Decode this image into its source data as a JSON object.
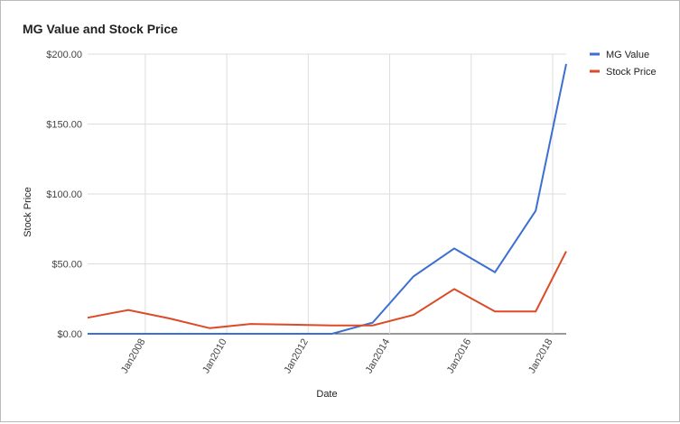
{
  "chart_data": {
    "type": "line",
    "title": "MG Value and Stock Price",
    "x_label": "Date",
    "y_label": "Stock Price",
    "x": [
      "2006-08",
      "2007-08",
      "2008-08",
      "2009-08",
      "2010-08",
      "2011-08",
      "2012-08",
      "2013-08",
      "2014-08",
      "2015-08",
      "2016-08",
      "2017-08",
      "2018-05"
    ],
    "series": [
      {
        "name": "MG Value",
        "color": "#3c6fd1",
        "values": [
          0,
          0,
          0,
          0,
          0,
          0,
          0,
          8,
          41,
          61,
          44,
          88,
          193
        ]
      },
      {
        "name": "Stock Price",
        "color": "#dc4a26",
        "values": [
          11.5,
          17,
          11,
          4,
          7,
          6.5,
          6,
          6,
          13.5,
          32,
          16,
          16,
          59
        ]
      }
    ],
    "xlim": [
      "2006-08",
      "2018-05"
    ],
    "xticks": [
      {
        "value": "2008-01",
        "label": "Jan2008"
      },
      {
        "value": "2010-01",
        "label": "Jan2010"
      },
      {
        "value": "2012-01",
        "label": "Jan2012"
      },
      {
        "value": "2014-01",
        "label": "Jan2014"
      },
      {
        "value": "2016-01",
        "label": "Jan2016"
      },
      {
        "value": "2018-01",
        "label": "Jan2018"
      }
    ],
    "ylim": [
      0,
      200
    ],
    "yticks": [
      {
        "value": 0,
        "label": "$0.00"
      },
      {
        "value": 50,
        "label": "$50.00"
      },
      {
        "value": 100,
        "label": "$100.00"
      },
      {
        "value": 150,
        "label": "$150.00"
      },
      {
        "value": 200,
        "label": "$200.00"
      }
    ],
    "grid": true,
    "legend": "right"
  }
}
